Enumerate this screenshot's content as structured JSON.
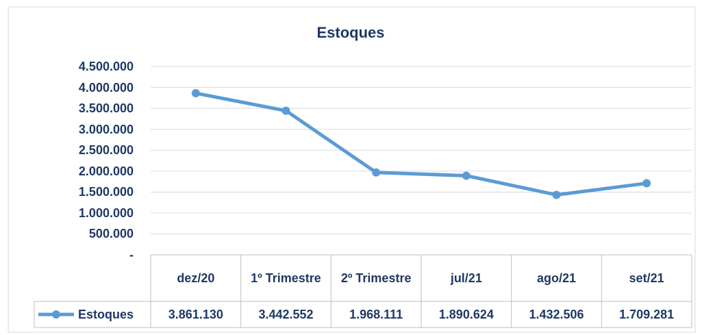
{
  "chart_data": {
    "type": "line",
    "title": "Estoques",
    "categories": [
      "dez/20",
      "1º Trimestre",
      "2º Trimestre",
      "jul/21",
      "ago/21",
      "set/21"
    ],
    "series": [
      {
        "name": "Estoques",
        "color": "#5b9bd5",
        "values": [
          3861130,
          3442552,
          1968111,
          1890624,
          1432506,
          1709281
        ],
        "value_labels": [
          "3.861.130",
          "3.442.552",
          "1.968.111",
          "1.890.624",
          "1.432.506",
          "1.709.281"
        ]
      }
    ],
    "ylim": [
      0,
      4500000
    ],
    "yticks": [
      {
        "value": 0,
        "label": "-"
      },
      {
        "value": 500000,
        "label": "500.000"
      },
      {
        "value": 1000000,
        "label": "1.000.000"
      },
      {
        "value": 1500000,
        "label": "1.500.000"
      },
      {
        "value": 2000000,
        "label": "2.000.000"
      },
      {
        "value": 2500000,
        "label": "2.500.000"
      },
      {
        "value": 3000000,
        "label": "3.000.000"
      },
      {
        "value": 3500000,
        "label": "3.500.000"
      },
      {
        "value": 4000000,
        "label": "4.000.000"
      },
      {
        "value": 4500000,
        "label": "4.500.000"
      }
    ],
    "grid": true,
    "data_table": true
  }
}
